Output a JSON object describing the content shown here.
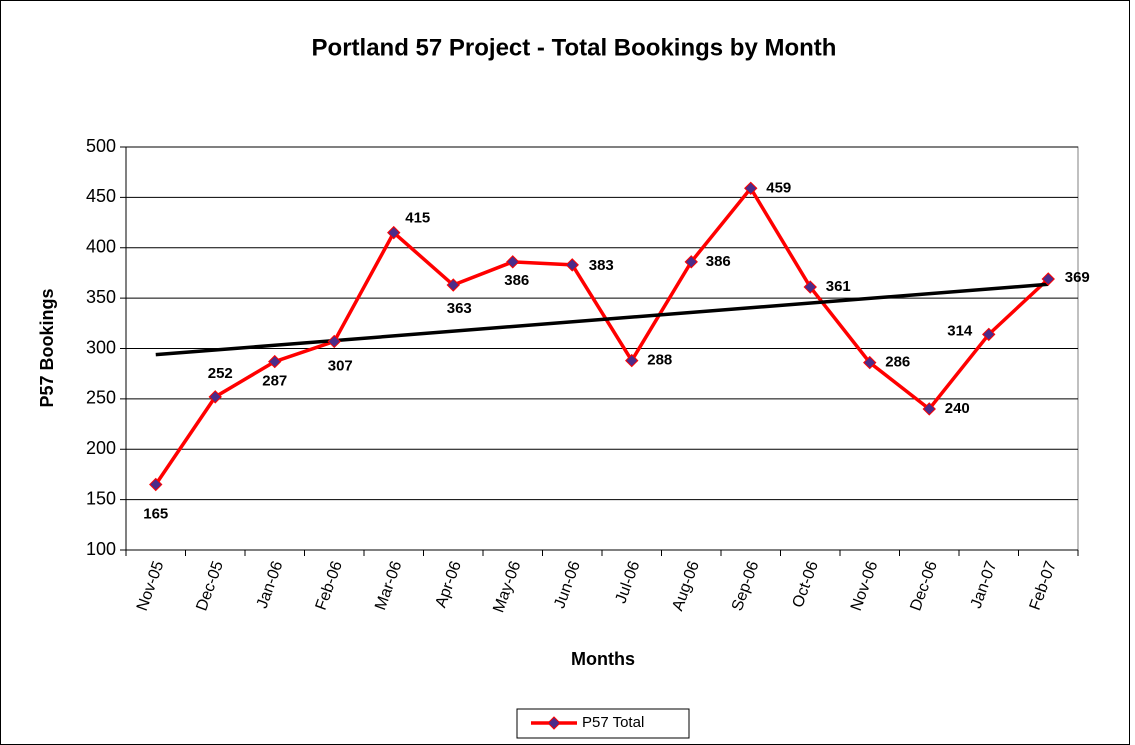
{
  "chart_data": {
    "type": "line",
    "title": "Portland 57 Project - Total Bookings by Month",
    "x_label": "Months",
    "y_label": "P57 Bookings",
    "categories": [
      "Nov-05",
      "Dec-05",
      "Jan-06",
      "Feb-06",
      "Mar-06",
      "Apr-06",
      "May-06",
      "Jun-06",
      "Jul-06",
      "Aug-06",
      "Sep-06",
      "Oct-06",
      "Nov-06",
      "Dec-06",
      "Jan-07",
      "Feb-07"
    ],
    "series": [
      {
        "name": "P57 Total",
        "color": "#ff0000",
        "marker_color": "#4b2c8a",
        "values": [
          165,
          252,
          287,
          307,
          415,
          363,
          386,
          383,
          288,
          386,
          459,
          361,
          286,
          240,
          314,
          369
        ]
      }
    ],
    "trendline": "linear",
    "trendline_color": "#000000",
    "ylim": [
      100,
      500
    ],
    "yticks": [
      100,
      150,
      200,
      250,
      300,
      350,
      400,
      450,
      500
    ],
    "grid": true,
    "legend": "bottom"
  }
}
